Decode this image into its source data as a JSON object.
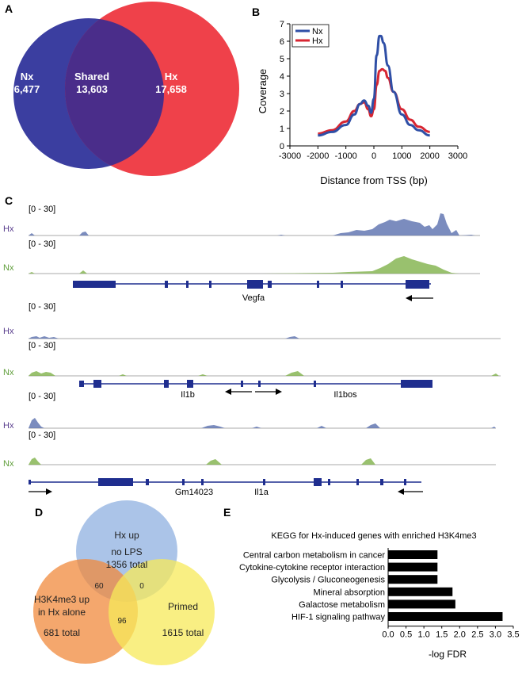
{
  "panels": {
    "a": "A",
    "b": "B",
    "c": "C",
    "d": "D",
    "e": "E"
  },
  "venn_a": {
    "nx_label": "Nx",
    "nx_count": "6,477",
    "shared_label": "Shared",
    "shared_count": "13,603",
    "hx_label": "Hx",
    "hx_count": "17,658",
    "nx_color": "#3b3ea0",
    "hx_color": "#ee3b44"
  },
  "chart_data": [
    {
      "type": "line",
      "title": "",
      "xlabel": "Distance from TSS (bp)",
      "ylabel": "Coverage",
      "xlim": [
        -3000,
        3000
      ],
      "ylim": [
        0,
        7
      ],
      "xticks": [
        "-3000",
        "-2000",
        "-1000",
        "0",
        "1000",
        "2000",
        "3000"
      ],
      "yticks": [
        "0",
        "1",
        "2",
        "3",
        "4",
        "5",
        "6",
        "7"
      ],
      "legend": [
        "Nx",
        "Hx"
      ],
      "series": [
        {
          "name": "Nx",
          "color": "#2f4fa6",
          "x": [
            -2000,
            -1500,
            -1000,
            -700,
            -500,
            -350,
            -200,
            -100,
            0,
            100,
            200,
            250,
            350,
            500,
            700,
            1000,
            1300,
            1600,
            2000
          ],
          "y": [
            0.6,
            0.8,
            1.2,
            1.8,
            2.4,
            2.6,
            2.3,
            1.9,
            2.7,
            5.2,
            6.3,
            6.3,
            5.9,
            4.6,
            3.1,
            1.8,
            1.2,
            0.9,
            0.6
          ]
        },
        {
          "name": "Hx",
          "color": "#d72632",
          "x": [
            -2000,
            -1500,
            -1000,
            -700,
            -500,
            -350,
            -200,
            -100,
            0,
            100,
            200,
            300,
            400,
            500,
            700,
            1000,
            1300,
            1600,
            2000
          ],
          "y": [
            0.7,
            0.9,
            1.4,
            2.0,
            2.4,
            2.5,
            2.1,
            1.7,
            2.1,
            3.5,
            4.3,
            4.4,
            4.3,
            3.9,
            3.1,
            2.1,
            1.5,
            1.1,
            0.8
          ]
        }
      ]
    },
    {
      "type": "bar",
      "title": "KEGG for Hx-induced genes with enriched H3K4me3",
      "xlabel": "-log FDR",
      "ylabel": "",
      "xlim": [
        0,
        3.5
      ],
      "xticks": [
        "0.0",
        "0.5",
        "1.0",
        "1.5",
        "2.0",
        "2.5",
        "3.0",
        "3.5"
      ],
      "categories": [
        "Central carbon metabolism in cancer",
        "Cytokine-cytokine receptor interaction",
        "Glycolysis / Gluconeogenesis",
        "Mineral absorption",
        "Galactose metabolism",
        "HIF-1 signaling pathway"
      ],
      "values": [
        1.38,
        1.38,
        1.38,
        1.8,
        1.88,
        3.2
      ],
      "color": "#000000"
    }
  ],
  "tracks": {
    "range": "[0 - 30]",
    "hx": "Hx",
    "nx": "Nx",
    "hx_color": "#5a6fae",
    "nx_color": "#7fb24a",
    "genes": {
      "vegfa": "Vegfa",
      "il1b": "Il1b",
      "il1bos": "Il1bos",
      "gm14023": "Gm14023",
      "il1a": "Il1a"
    }
  },
  "venn_d": {
    "top_line1": "Hx up",
    "top_line2": "no LPS",
    "top_line3": "1356 total",
    "left_line1": "H3K4me3 up",
    "left_line2": "in Hx alone",
    "left_line3": "681 total",
    "right_line1": "Primed",
    "right_line2": "1615 total",
    "n_top_left": "60",
    "n_top_right": "0",
    "n_left_right": "96",
    "top_color": "#8fb0e0",
    "left_color": "#f08a3c",
    "right_color": "#f7ea5a"
  }
}
